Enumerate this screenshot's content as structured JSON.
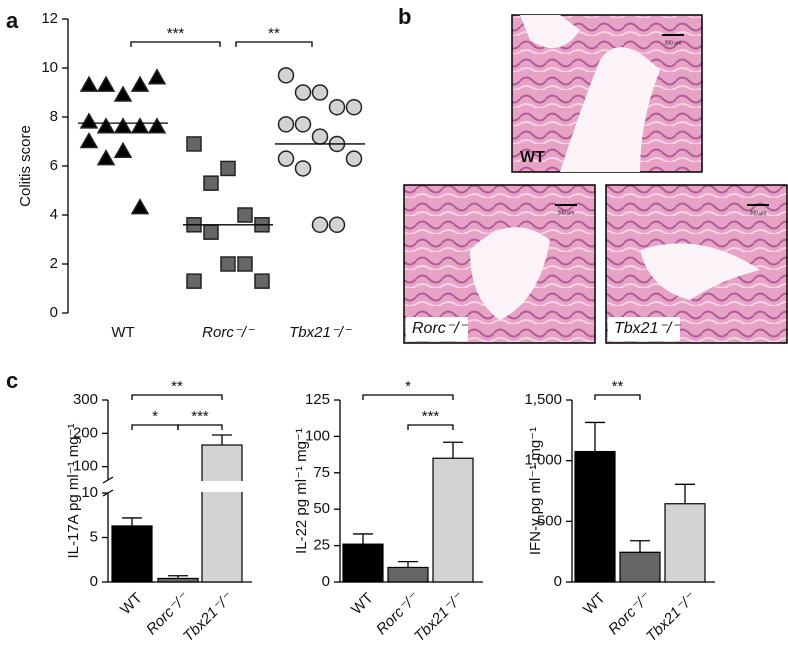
{
  "panel_labels": [
    "a",
    "b",
    "c"
  ],
  "histology": {
    "scale_bar": "200 µm",
    "panels": [
      "WT",
      "Rorc⁻/⁻",
      "Tbx21⁻/⁻"
    ]
  },
  "chart_data": [
    {
      "type": "strip",
      "y_label": "Colitis score",
      "categories": [
        "WT",
        "Rorc⁻/⁻",
        "Tbx21⁻/⁻"
      ],
      "groups": [
        {
          "marker": "triangle",
          "color": "#000000",
          "median": 7.75,
          "values": [
            9.3,
            9.3,
            8.9,
            9.3,
            9.6,
            7.8,
            7.6,
            7.6,
            7.6,
            7.6,
            7.0,
            6.3,
            6.6,
            4.3
          ]
        },
        {
          "marker": "square",
          "color": "#666666",
          "median": 3.6,
          "values": [
            6.9,
            5.3,
            5.9,
            4.0,
            3.6,
            3.6,
            3.3,
            2.0,
            2.0,
            1.3,
            1.3
          ]
        },
        {
          "marker": "circle",
          "color": "#d3d3d3",
          "median": 6.9,
          "values": [
            9.7,
            9.0,
            9.0,
            8.4,
            8.4,
            7.7,
            7.7,
            7.2,
            6.9,
            6.3,
            6.3,
            5.9,
            3.6,
            3.6
          ]
        }
      ],
      "ylim": [
        0,
        12
      ],
      "yticks": [
        0,
        2,
        4,
        6,
        8,
        10,
        12
      ],
      "significance": [
        {
          "from": 0,
          "to": 1,
          "label": "***"
        },
        {
          "from": 1,
          "to": 2,
          "label": "**"
        }
      ]
    },
    {
      "type": "bar",
      "y_label": "IL-17A pg ml⁻¹ mg⁻¹",
      "categories": [
        "WT",
        "Rorc⁻/⁻",
        "Tbx21⁻/⁻"
      ],
      "colors": [
        "#000000",
        "#666666",
        "#d3d3d3"
      ],
      "values": [
        6.3,
        0.4,
        165
      ],
      "errors": [
        0.9,
        0.3,
        30
      ],
      "ylim": [
        0,
        300
      ],
      "ybreak": [
        10,
        60
      ],
      "yticks": [
        0,
        5,
        10,
        100,
        200,
        300
      ],
      "significance": [
        {
          "from": 0,
          "to": 2,
          "label": "**"
        },
        {
          "from": 0,
          "to": 1,
          "label": "*"
        },
        {
          "from": 1,
          "to": 2,
          "label": "***"
        }
      ]
    },
    {
      "type": "bar",
      "y_label": "IL-22 pg ml⁻¹ mg⁻¹",
      "categories": [
        "WT",
        "Rorc⁻/⁻",
        "Tbx21⁻/⁻"
      ],
      "colors": [
        "#000000",
        "#666666",
        "#d3d3d3"
      ],
      "values": [
        26,
        10,
        85
      ],
      "errors": [
        7,
        4,
        11
      ],
      "ylim": [
        0,
        125
      ],
      "yticks": [
        0,
        25,
        50,
        75,
        100,
        125
      ],
      "significance": [
        {
          "from": 0,
          "to": 2,
          "label": "*"
        },
        {
          "from": 1,
          "to": 2,
          "label": "***"
        }
      ]
    },
    {
      "type": "bar",
      "y_label": "IFN-γ pg ml⁻¹ mg⁻¹",
      "categories": [
        "WT",
        "Rorc⁻/⁻",
        "Tbx21⁻/⁻"
      ],
      "colors": [
        "#000000",
        "#666666",
        "#d3d3d3"
      ],
      "values": [
        1075,
        245,
        645
      ],
      "errors": [
        240,
        95,
        160
      ],
      "ylim": [
        0,
        1500
      ],
      "yticks": [
        0,
        500,
        {
          "value": 1000,
          "label": "1,000"
        },
        {
          "value": 1500,
          "label": "1,500"
        }
      ],
      "significance": [
        {
          "from": 0,
          "to": 1,
          "label": "**"
        }
      ]
    }
  ]
}
